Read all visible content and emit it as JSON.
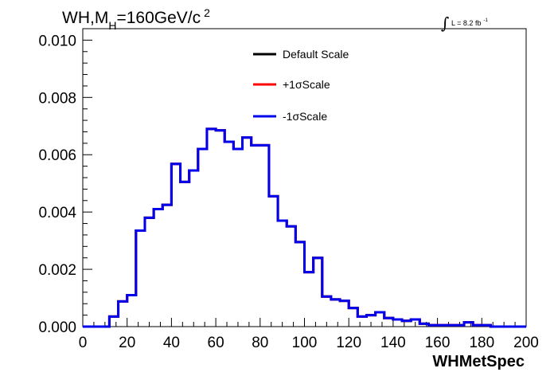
{
  "chart_data": {
    "type": "line",
    "style": "step-histogram",
    "title_main": "WH,M",
    "title_sub": "H",
    "title_rest": "=160GeV/c",
    "title_sup": "2",
    "lumi_integral": "∫",
    "lumi_text": "L = 8.2 fb",
    "lumi_sup": "-1",
    "xlabel": "WHMetSpec",
    "xlim": [
      0,
      200
    ],
    "ylim": [
      0,
      0.0104
    ],
    "xticks": [
      "0",
      "20",
      "40",
      "60",
      "80",
      "100",
      "120",
      "140",
      "160",
      "180",
      "200"
    ],
    "xtick_values": [
      0,
      20,
      40,
      60,
      80,
      100,
      120,
      140,
      160,
      180,
      200
    ],
    "yticks": [
      "0.000",
      "0.002",
      "0.004",
      "0.006",
      "0.008",
      "0.010"
    ],
    "ytick_values": [
      0,
      0.002,
      0.004,
      0.006,
      0.008,
      0.01
    ],
    "bin_width": 4,
    "bin_start": 0,
    "legend_position": "top-center",
    "series": [
      {
        "name": "Default Scale",
        "color": "#000000",
        "values": [
          0,
          0,
          0,
          0.00035,
          0.00088,
          0.0011,
          0.00335,
          0.0038,
          0.0041,
          0.00425,
          0.00568,
          0.00505,
          0.00545,
          0.0062,
          0.0069,
          0.00685,
          0.00645,
          0.0062,
          0.0066,
          0.00633,
          0.00633,
          0.00455,
          0.0037,
          0.0035,
          0.00295,
          0.0019,
          0.0024,
          0.00105,
          0.00095,
          0.0009,
          0.00065,
          0.00035,
          0.0004,
          0.0005,
          0.0003,
          0.00025,
          0.0002,
          0.00025,
          0.0001,
          5e-05,
          5e-05,
          5e-05,
          5e-05,
          0.00015,
          5e-05,
          5e-05,
          0.0,
          0.0,
          0.0,
          0.0
        ]
      },
      {
        "name": "+1σScale",
        "color": "#ff0000",
        "values": [
          0,
          0,
          0,
          0.00035,
          0.00088,
          0.0011,
          0.00335,
          0.0038,
          0.0041,
          0.00425,
          0.00568,
          0.00505,
          0.00545,
          0.0062,
          0.0069,
          0.00685,
          0.00645,
          0.0062,
          0.0066,
          0.00633,
          0.00633,
          0.00455,
          0.0037,
          0.0035,
          0.00295,
          0.0019,
          0.0024,
          0.00105,
          0.00095,
          0.0009,
          0.00065,
          0.00035,
          0.0004,
          0.0005,
          0.0003,
          0.00025,
          0.0002,
          0.00025,
          0.0001,
          5e-05,
          5e-05,
          5e-05,
          5e-05,
          0.00015,
          5e-05,
          5e-05,
          0.0,
          0.0,
          0.0,
          0.0
        ]
      },
      {
        "name": "-1σScale",
        "color": "#0000ee",
        "values": [
          0,
          0,
          0,
          0.00035,
          0.00088,
          0.0011,
          0.00335,
          0.0038,
          0.0041,
          0.00425,
          0.00568,
          0.00505,
          0.00545,
          0.0062,
          0.0069,
          0.00685,
          0.00645,
          0.0062,
          0.0066,
          0.00633,
          0.00633,
          0.00455,
          0.0037,
          0.0035,
          0.00295,
          0.0019,
          0.0024,
          0.00105,
          0.00095,
          0.0009,
          0.00065,
          0.00035,
          0.0004,
          0.0005,
          0.0003,
          0.00025,
          0.0002,
          0.00025,
          0.0001,
          5e-05,
          5e-05,
          5e-05,
          5e-05,
          0.00015,
          5e-05,
          5e-05,
          0.0,
          0.0,
          0.0,
          0.0
        ]
      }
    ]
  }
}
